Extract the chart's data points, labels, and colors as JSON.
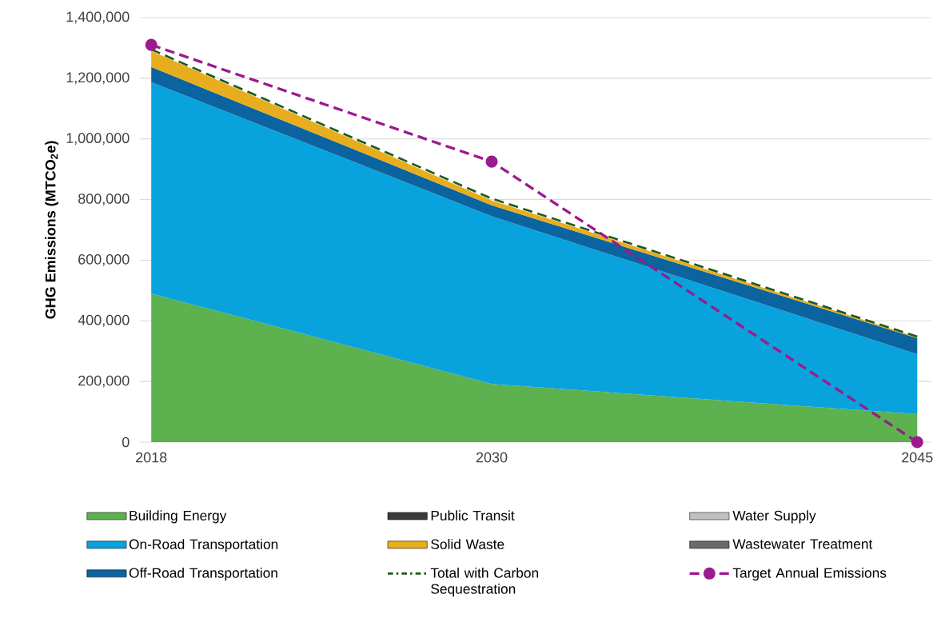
{
  "chart_data": {
    "type": "area",
    "ylabel": "GHG Emissions (MTCO$_{2}$e)",
    "x": [
      2018,
      2030,
      2045
    ],
    "xlim": [
      2017.6,
      2045.5
    ],
    "xticks": [
      2018,
      2030,
      2045
    ],
    "ylim": [
      0,
      1400000
    ],
    "yticks": [
      0,
      {
        "value": 200000,
        "label": "200,000"
      },
      {
        "value": 400000,
        "label": "400,000"
      },
      {
        "value": 600000,
        "label": "600,000"
      },
      {
        "value": 800000,
        "label": "800,000"
      },
      {
        "value": 1000000,
        "label": "1,000,000"
      },
      {
        "value": 1200000,
        "label": "1,200,000"
      },
      {
        "value": 1400000,
        "label": "1,400,000"
      }
    ],
    "grid": "y",
    "legend": "bottom",
    "stacked": true,
    "series": [
      {
        "name": "Building Energy",
        "color": "#5db14e",
        "values": [
          490000,
          192000,
          92000
        ]
      },
      {
        "name": "On-Road Transportation",
        "color": "#08a3dc",
        "values": [
          697000,
          553000,
          198000
        ]
      },
      {
        "name": "Off-Road Transportation",
        "color": "#0b64a0",
        "values": [
          50000,
          36000,
          53000
        ]
      },
      {
        "name": "Public Transit",
        "color": "#3a3a3a",
        "values": [
          null,
          null,
          null
        ]
      },
      {
        "name": "Solid Waste",
        "color": "#e8ad1c",
        "values": [
          53000,
          16000,
          3000
        ]
      },
      {
        "name": "Total with Carbon Sequestration",
        "type": "line",
        "color": "#1e5a1e",
        "line_style": "dashed",
        "values": [
          1295000,
          803000,
          348000
        ]
      },
      {
        "name": "Water Supply",
        "color": "#c0c0c0",
        "values": [
          null,
          null,
          null
        ]
      },
      {
        "name": "Wastewater Treatment",
        "color": "#6a6a6a",
        "values": [
          null,
          null,
          null
        ]
      },
      {
        "name": "Target Annual Emissions",
        "type": "line",
        "color": "#9b1a8f",
        "line_style": "dashed",
        "marker": "circle",
        "values": [
          1310000,
          925000,
          0
        ]
      }
    ]
  }
}
